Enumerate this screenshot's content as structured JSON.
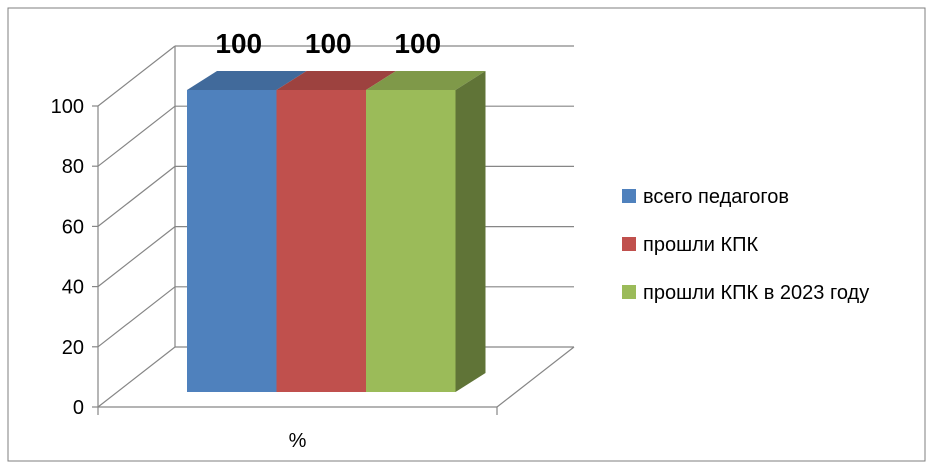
{
  "chart_data": {
    "type": "bar",
    "categories": [
      "%"
    ],
    "series": [
      {
        "name": "всего педагогов",
        "values": [
          100
        ],
        "color": "#4F81BD"
      },
      {
        "name": "прошли КПК",
        "values": [
          100
        ],
        "color": "#C0504D"
      },
      {
        "name": "прошли КПК в 2023 году",
        "values": [
          100
        ],
        "color": "#9BBB59"
      }
    ],
    "ylim": [
      0,
      100
    ],
    "yticks": [
      0,
      20,
      40,
      60,
      80,
      100
    ],
    "grid": true,
    "three_d": true,
    "legend_position": "right",
    "data_labels": true
  }
}
